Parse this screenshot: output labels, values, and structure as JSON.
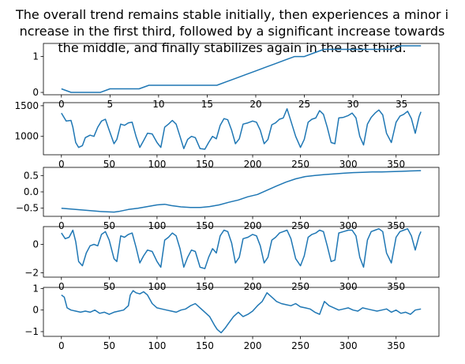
{
  "figure": {
    "title_lines": [
      "The overall trend remains stable initially, then experiences a minor i",
      "ncrease in the first third, followed by a significant increase towards",
      "the middle, and finally stabilizes again in the last third."
    ]
  },
  "colors": {
    "line": "#1f77b4",
    "axes": "#000000",
    "background": "#ffffff"
  },
  "chart_data": [
    {
      "type": "line",
      "xlim": [
        -1.85,
        38.85
      ],
      "ylim": [
        -0.065,
        1.365
      ],
      "xticks": [
        0,
        5,
        10,
        15,
        20,
        25,
        30,
        35
      ],
      "xtick_labels": [
        "0",
        "5",
        "10",
        "15",
        "20",
        "25",
        "30",
        "35"
      ],
      "yticks": [
        0,
        1
      ],
      "ytick_labels": [
        "0",
        "1"
      ],
      "x": [
        0,
        1,
        2,
        3,
        4,
        5,
        6,
        7,
        8,
        9,
        10,
        11,
        12,
        13,
        14,
        15,
        16,
        17,
        18,
        19,
        20,
        21,
        22,
        23,
        24,
        25,
        26,
        27,
        28,
        29,
        30,
        31,
        32,
        33,
        34,
        35,
        36,
        37
      ],
      "y": [
        0.1,
        0.0,
        0.0,
        0.0,
        0.0,
        0.1,
        0.1,
        0.1,
        0.1,
        0.2,
        0.2,
        0.2,
        0.2,
        0.2,
        0.2,
        0.2,
        0.2,
        0.3,
        0.4,
        0.5,
        0.6,
        0.7,
        0.8,
        0.9,
        1.0,
        1.0,
        1.1,
        1.2,
        1.2,
        1.2,
        1.2,
        1.2,
        1.2,
        1.2,
        1.2,
        1.3,
        1.3,
        1.3
      ]
    },
    {
      "type": "line",
      "xlim": [
        -18.8,
        394.8
      ],
      "ylim": [
        700,
        1550
      ],
      "xticks": [
        0,
        50,
        100,
        150,
        200,
        250,
        300,
        350
      ],
      "xtick_labels": [
        "0",
        "50",
        "100",
        "150",
        "200",
        "250",
        "300",
        "350"
      ],
      "yticks": [
        1000,
        1500
      ],
      "ytick_labels": [
        "1000",
        "1500"
      ],
      "x": [
        0,
        5,
        10,
        12,
        15,
        18,
        22,
        25,
        30,
        34,
        38,
        42,
        46,
        50,
        55,
        58,
        62,
        66,
        70,
        74,
        78,
        82,
        86,
        90,
        95,
        100,
        104,
        108,
        112,
        116,
        120,
        124,
        128,
        132,
        136,
        140,
        145,
        150,
        154,
        158,
        162,
        166,
        170,
        174,
        178,
        182,
        186,
        190,
        195,
        200,
        204,
        208,
        212,
        216,
        220,
        224,
        228,
        232,
        236,
        240,
        245,
        250,
        254,
        258,
        262,
        266,
        270,
        274,
        278,
        282,
        286,
        290,
        295,
        300,
        304,
        308,
        312,
        316,
        320,
        324,
        328,
        332,
        336,
        340,
        345,
        350,
        354,
        358,
        362,
        366,
        370,
        374,
        376
      ],
      "y": [
        1380,
        1250,
        1260,
        1150,
        900,
        820,
        850,
        980,
        1020,
        1000,
        1150,
        1250,
        1280,
        1100,
        880,
        950,
        1200,
        1180,
        1220,
        1230,
        1000,
        820,
        930,
        1050,
        1040,
        900,
        820,
        1150,
        1200,
        1260,
        1200,
        1000,
        800,
        950,
        1000,
        980,
        800,
        790,
        900,
        1000,
        960,
        1180,
        1290,
        1270,
        1100,
        880,
        960,
        1200,
        1220,
        1250,
        1230,
        1100,
        880,
        950,
        1190,
        1220,
        1280,
        1300,
        1450,
        1250,
        1000,
        820,
        950,
        1230,
        1280,
        1300,
        1420,
        1360,
        1150,
        900,
        880,
        1300,
        1310,
        1340,
        1380,
        1300,
        1000,
        860,
        1200,
        1310,
        1380,
        1430,
        1350,
        1050,
        900,
        1230,
        1330,
        1360,
        1410,
        1290,
        1050,
        1320,
        1400
      ]
    },
    {
      "type": "line",
      "xlim": [
        -18.8,
        394.8
      ],
      "ylim": [
        -0.75,
        0.75
      ],
      "xticks": [
        0,
        50,
        100,
        150,
        200,
        250,
        300,
        350
      ],
      "xtick_labels": [
        "0",
        "50",
        "100",
        "150",
        "200",
        "250",
        "300",
        "350"
      ],
      "yticks": [
        0.5,
        0.0,
        -0.5
      ],
      "ytick_labels": [
        "0.5",
        "0.0",
        "−0.5"
      ],
      "x": [
        0,
        20,
        40,
        55,
        60,
        70,
        80,
        90,
        100,
        108,
        115,
        125,
        135,
        145,
        155,
        165,
        175,
        185,
        195,
        205,
        215,
        225,
        235,
        245,
        255,
        265,
        275,
        285,
        295,
        305,
        315,
        325,
        335,
        345,
        355,
        365,
        376
      ],
      "y": [
        -0.5,
        -0.55,
        -0.6,
        -0.62,
        -0.6,
        -0.54,
        -0.5,
        -0.45,
        -0.4,
        -0.38,
        -0.42,
        -0.46,
        -0.48,
        -0.48,
        -0.45,
        -0.4,
        -0.32,
        -0.25,
        -0.15,
        -0.08,
        0.05,
        0.18,
        0.3,
        0.4,
        0.47,
        0.5,
        0.53,
        0.55,
        0.57,
        0.59,
        0.6,
        0.61,
        0.61,
        0.62,
        0.63,
        0.64,
        0.65
      ]
    },
    {
      "type": "line",
      "xlim": [
        -18.8,
        394.8
      ],
      "ylim": [
        -2.3,
        1.25
      ],
      "xticks": [
        0,
        50,
        100,
        150,
        200,
        250,
        300,
        350
      ],
      "xtick_labels": [
        "0",
        "50",
        "100",
        "150",
        "200",
        "250",
        "300",
        "350"
      ],
      "yticks": [
        0,
        -2
      ],
      "ytick_labels": [
        "0",
        "−2"
      ],
      "x": [
        0,
        4,
        8,
        12,
        15,
        18,
        22,
        26,
        30,
        34,
        38,
        42,
        46,
        50,
        55,
        58,
        62,
        66,
        70,
        74,
        78,
        82,
        86,
        90,
        95,
        100,
        104,
        108,
        112,
        116,
        120,
        124,
        128,
        132,
        136,
        140,
        145,
        150,
        154,
        158,
        162,
        166,
        170,
        174,
        178,
        182,
        186,
        190,
        195,
        200,
        204,
        208,
        212,
        216,
        220,
        224,
        228,
        232,
        236,
        240,
        245,
        250,
        254,
        258,
        262,
        266,
        270,
        274,
        278,
        282,
        286,
        290,
        295,
        300,
        304,
        308,
        312,
        316,
        320,
        324,
        328,
        332,
        336,
        340,
        345,
        350,
        354,
        358,
        362,
        366,
        370,
        374,
        376
      ],
      "y": [
        0.8,
        0.4,
        0.5,
        1.0,
        0.2,
        -1.2,
        -1.5,
        -0.6,
        -0.1,
        0.0,
        -0.1,
        0.7,
        0.9,
        0.3,
        -1.0,
        -1.2,
        0.6,
        0.5,
        0.7,
        0.8,
        -0.2,
        -1.3,
        -0.8,
        -0.4,
        -0.5,
        -1.2,
        -1.6,
        0.3,
        0.5,
        0.8,
        0.6,
        -0.3,
        -1.6,
        -0.9,
        -0.4,
        -0.5,
        -1.6,
        -1.7,
        -0.9,
        -0.3,
        -0.6,
        0.6,
        1.0,
        0.9,
        0.1,
        -1.3,
        -0.9,
        0.4,
        0.5,
        0.7,
        0.6,
        -0.1,
        -1.3,
        -0.9,
        0.3,
        0.5,
        0.8,
        0.9,
        1.0,
        0.4,
        -1.0,
        -1.5,
        -0.8,
        0.5,
        0.7,
        0.8,
        1.0,
        0.9,
        -0.1,
        -1.2,
        -1.1,
        0.8,
        0.9,
        1.0,
        1.0,
        0.6,
        -0.9,
        -1.6,
        0.3,
        0.9,
        1.0,
        1.1,
        0.9,
        -0.6,
        -1.3,
        0.5,
        0.9,
        1.0,
        1.1,
        0.6,
        -0.4,
        0.6,
        0.9
      ]
    },
    {
      "type": "line",
      "xlim": [
        -18.8,
        394.8
      ],
      "ylim": [
        -1.22,
        1.05
      ],
      "xticks": [
        0,
        50,
        100,
        150,
        200,
        250,
        300,
        350
      ],
      "xtick_labels": [
        "0",
        "50",
        "100",
        "150",
        "200",
        "250",
        "300",
        "350"
      ],
      "yticks": [
        1,
        0,
        -1
      ],
      "ytick_labels": [
        "1",
        "0",
        "−1"
      ],
      "x": [
        0,
        3,
        6,
        10,
        15,
        20,
        25,
        30,
        35,
        40,
        45,
        50,
        55,
        60,
        65,
        70,
        72,
        75,
        78,
        82,
        86,
        90,
        95,
        100,
        105,
        110,
        115,
        120,
        125,
        130,
        135,
        140,
        145,
        150,
        155,
        160,
        163,
        167,
        171,
        175,
        180,
        185,
        190,
        195,
        200,
        205,
        210,
        215,
        220,
        225,
        230,
        235,
        240,
        245,
        250,
        255,
        260,
        265,
        270,
        275,
        280,
        285,
        290,
        295,
        300,
        305,
        310,
        315,
        320,
        325,
        330,
        335,
        340,
        345,
        350,
        355,
        360,
        365,
        370,
        376
      ],
      "y": [
        0.7,
        0.6,
        0.1,
        0.0,
        -0.05,
        -0.1,
        -0.05,
        -0.1,
        0.0,
        -0.15,
        -0.1,
        -0.2,
        -0.1,
        -0.05,
        0.0,
        0.2,
        0.7,
        0.9,
        0.8,
        0.75,
        0.85,
        0.7,
        0.3,
        0.1,
        0.05,
        0.0,
        -0.05,
        -0.1,
        0.0,
        0.05,
        0.2,
        0.3,
        0.1,
        -0.1,
        -0.3,
        -0.7,
        -0.9,
        -1.05,
        -0.85,
        -0.6,
        -0.3,
        -0.1,
        -0.3,
        -0.2,
        -0.05,
        0.2,
        0.4,
        0.8,
        0.6,
        0.4,
        0.3,
        0.25,
        0.2,
        0.3,
        0.15,
        0.1,
        0.05,
        -0.1,
        -0.2,
        0.4,
        0.2,
        0.1,
        0.0,
        0.05,
        0.1,
        0.0,
        -0.05,
        0.1,
        0.05,
        0.0,
        -0.05,
        0.0,
        0.05,
        -0.1,
        0.0,
        -0.15,
        -0.1,
        -0.2,
        0.0,
        0.05
      ]
    }
  ]
}
